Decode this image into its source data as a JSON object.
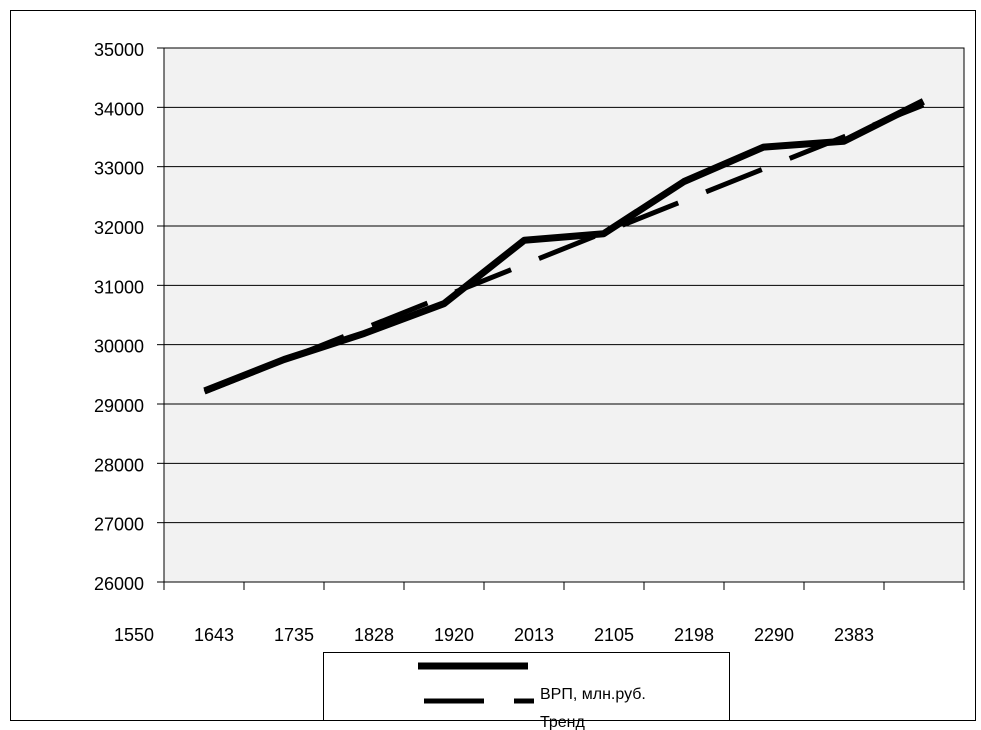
{
  "chart_data": {
    "type": "line",
    "title": "",
    "xlabel": "",
    "ylabel": "",
    "x_ticks": [
      "1550",
      "1643",
      "1735",
      "1828",
      "1920",
      "2013",
      "2105",
      "2198",
      "2290",
      "2383"
    ],
    "y_ticks": [
      "26000",
      "27000",
      "28000",
      "29000",
      "30000",
      "31000",
      "32000",
      "33000",
      "34000",
      "35000"
    ],
    "xlim": [
      1550,
      2476
    ],
    "ylim": [
      26000,
      35000
    ],
    "grid": true,
    "legend_position": "bottom",
    "series": [
      {
        "name": "ВРП, млн.руб.",
        "style": "solid",
        "color": "#000000",
        "x": [
          1597,
          1689,
          1782,
          1874,
          1967,
          2059,
          2152,
          2244,
          2337,
          2429
        ],
        "y": [
          29220,
          29750,
          30190,
          30690,
          31760,
          31870,
          32750,
          33330,
          33430,
          34100
        ]
      },
      {
        "name": "Тренд",
        "style": "dashed",
        "color": "#000000",
        "x": [
          1597,
          2429
        ],
        "y": [
          29200,
          34040
        ]
      }
    ]
  }
}
